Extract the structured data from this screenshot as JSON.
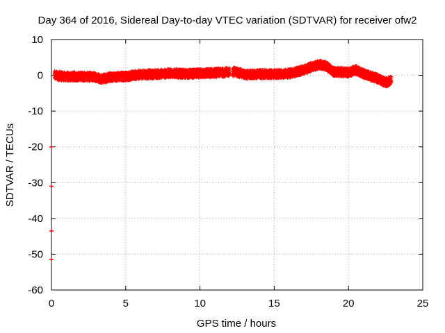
{
  "chart_data": {
    "type": "scatter",
    "title": "Day 364 of 2016, Sidereal Day-to-day VTEC variation (SDTVAR) for receiver ofw2",
    "xlabel": "GPS time / hours",
    "ylabel": "SDTVAR / TECUs",
    "xlim": [
      0,
      25
    ],
    "ylim": [
      -60,
      10
    ],
    "x_ticks": [
      0,
      5,
      10,
      15,
      20,
      25
    ],
    "x_tick_labels": [
      "0",
      "5",
      "10",
      "15",
      "20",
      "25"
    ],
    "y_ticks": [
      10,
      0,
      -10,
      -20,
      -30,
      -40,
      -50,
      -60
    ],
    "y_tick_labels": [
      "10",
      "0",
      "-10",
      "-20",
      "-30",
      "-40",
      "-50",
      "-60"
    ],
    "grid": true,
    "legend": "none",
    "series": [
      {
        "name": "SDTVAR ofw2",
        "color": "#ff0000",
        "marker": "plus",
        "band_center": [
          [
            0.2,
            0.0
          ],
          [
            1.0,
            -0.4
          ],
          [
            2.0,
            -0.3
          ],
          [
            3.0,
            -0.5
          ],
          [
            3.4,
            -1.0
          ],
          [
            4.0,
            -0.5
          ],
          [
            5.0,
            -0.3
          ],
          [
            6.0,
            0.2
          ],
          [
            7.0,
            0.3
          ],
          [
            8.0,
            0.6
          ],
          [
            9.0,
            0.4
          ],
          [
            10.0,
            0.5
          ],
          [
            11.0,
            0.7
          ],
          [
            11.9,
            0.9
          ],
          [
            12.4,
            1.0
          ],
          [
            13.0,
            0.2
          ],
          [
            14.0,
            0.3
          ],
          [
            15.0,
            0.3
          ],
          [
            16.0,
            0.5
          ],
          [
            17.0,
            1.5
          ],
          [
            17.5,
            2.4
          ],
          [
            18.0,
            3.0
          ],
          [
            18.5,
            2.6
          ],
          [
            19.0,
            1.0
          ],
          [
            20.0,
            0.8
          ],
          [
            20.5,
            1.5
          ],
          [
            21.0,
            0.5
          ],
          [
            22.0,
            -1.0
          ],
          [
            22.5,
            -2.0
          ],
          [
            22.9,
            -1.5
          ]
        ],
        "band_width": 2.5,
        "isolated_points": [
          [
            0.0,
            -20.0
          ],
          [
            0.0,
            -31.0
          ],
          [
            0.0,
            -43.5
          ],
          [
            0.0,
            -51.5
          ]
        ]
      }
    ]
  }
}
